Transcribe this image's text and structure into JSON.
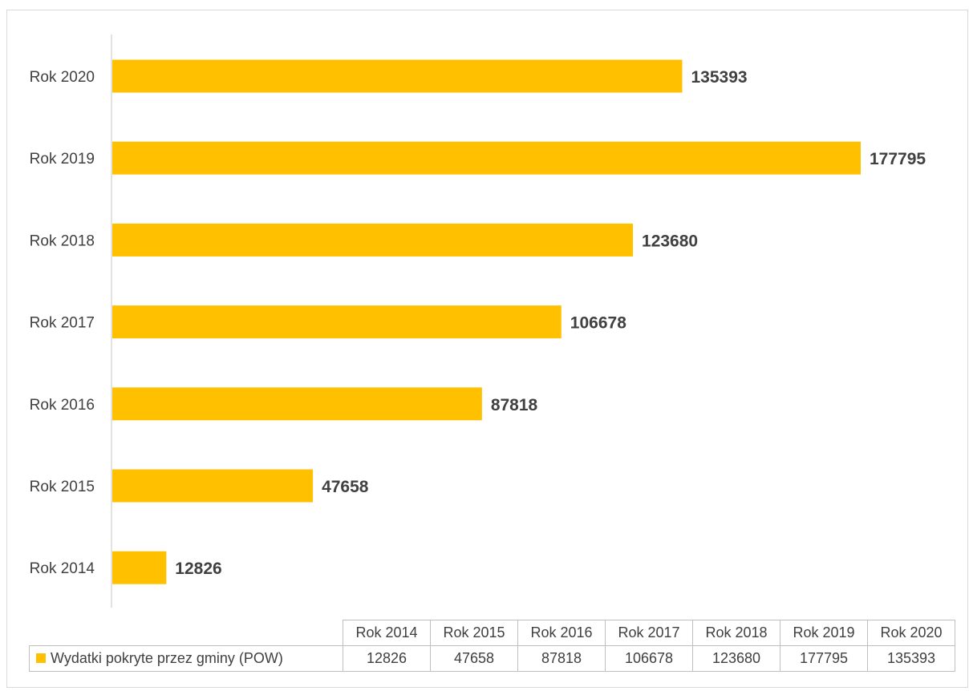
{
  "chart_data": {
    "type": "bar",
    "orientation": "horizontal",
    "categories": [
      "Rok 2014",
      "Rok 2015",
      "Rok 2016",
      "Rok 2017",
      "Rok 2018",
      "Rok 2019",
      "Rok 2020"
    ],
    "series": [
      {
        "name": "Wydatki pokryte przez gminy (POW)",
        "color": "#FFC000",
        "values": [
          12826,
          47658,
          87818,
          106678,
          123680,
          177795,
          135393
        ]
      }
    ],
    "xlim": [
      0,
      180000
    ],
    "grid": false,
    "data_labels": true,
    "legend": "data-table-below"
  }
}
